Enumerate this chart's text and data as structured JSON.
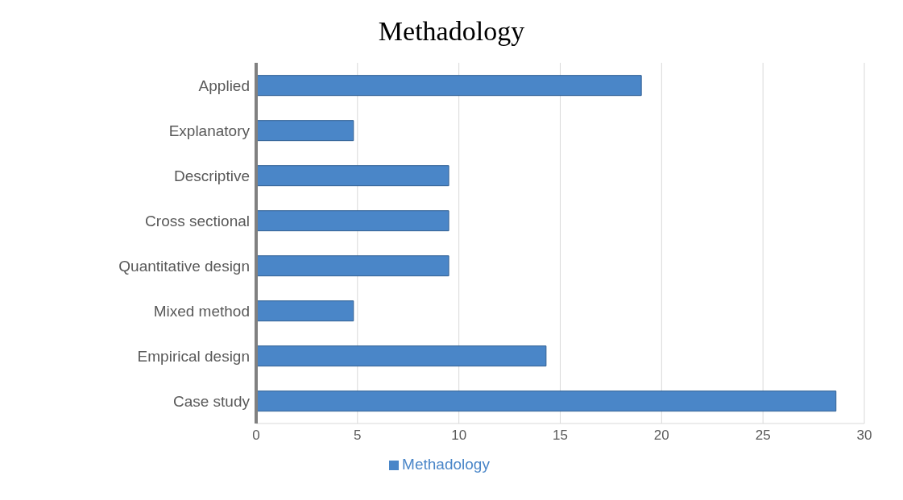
{
  "chart_data": {
    "type": "bar",
    "title": "Methadology",
    "orientation": "horizontal",
    "categories": [
      "Applied",
      "Explanatory",
      "Descriptive",
      "Cross sectional",
      "Quantitative design",
      "Mixed method",
      "Empirical design",
      "Case study"
    ],
    "series": [
      {
        "name": "Methadology",
        "color": "#4a86c8",
        "values": [
          19,
          4.8,
          9.5,
          9.5,
          9.5,
          4.8,
          14.3,
          28.6
        ]
      }
    ],
    "xlim": [
      0,
      30
    ],
    "xticks": [
      0,
      5,
      10,
      15,
      20,
      25,
      30
    ],
    "grid": "x",
    "legend": "bottom"
  }
}
